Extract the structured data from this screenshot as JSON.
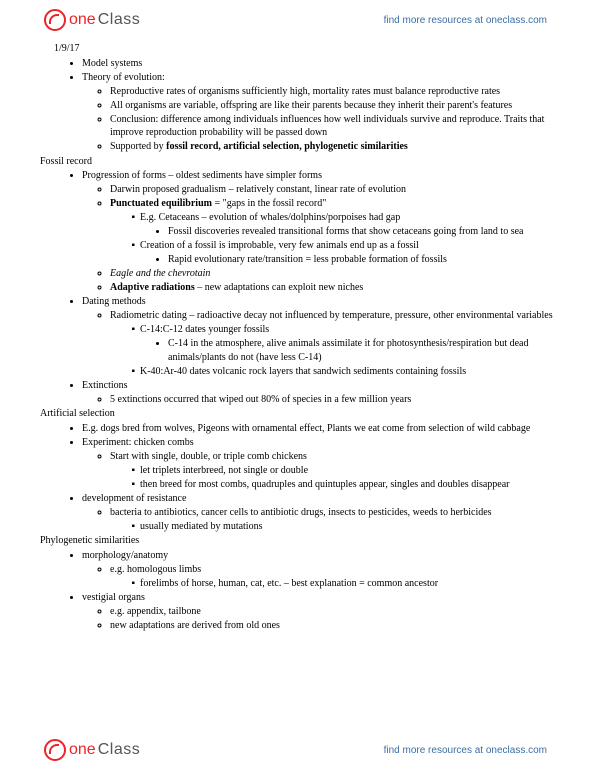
{
  "brand": {
    "one": "one",
    "class": "Class",
    "tagline": "find more resources at oneclass.com"
  },
  "date": "1/9/17",
  "s1": {
    "a": "Model systems",
    "b": "Theory of evolution:",
    "b1": "Reproductive rates of organisms sufficiently high, mortality rates must balance reproductive rates",
    "b2": "All organisms are variable, offspring are like their parents because they inherit their parent's features",
    "b3": "Conclusion: difference among individuals influences how well individuals survive and reproduce. Traits that improve reproduction probability will be passed down",
    "b4a": "Supported by ",
    "b4b": "fossil record, artificial selection, phylogenetic similarities"
  },
  "fossil": {
    "title": "Fossil record",
    "a": "Progression of forms – oldest sediments have simpler forms",
    "a1": "Darwin proposed gradualism – relatively constant, linear rate of evolution",
    "a2a": "Punctuated equilibrium",
    "a2b": " = \"gaps in the fossil record\"",
    "a2i": "E.g. Cetaceans – evolution of whales/dolphins/porpoises had gap",
    "a2i1": "Fossil discoveries revealed transitional forms that show cetaceans going from land to sea",
    "a2ii": "Creation of a fossil is improbable, very few animals end up as a fossil",
    "a2ii1": "Rapid evolutionary rate/transition = less probable formation of fossils",
    "a3": "Eagle and the chevrotain",
    "a4a": "Adaptive radiations",
    "a4b": " – new adaptations can exploit new niches",
    "b": "Dating methods",
    "b1": "Radiometric dating – radioactive decay not influenced by temperature, pressure, other environmental variables",
    "b1i": "C-14:C-12 dates younger fossils",
    "b1i1": "C-14 in the atmosphere, alive animals assimilate it for photosynthesis/respiration but dead animals/plants do not (have less C-14)",
    "b1ii": "K-40:Ar-40 dates volcanic rock layers that sandwich sediments containing fossils",
    "c": "Extinctions",
    "c1": "5 extinctions occurred that wiped out 80% of species in a few million years"
  },
  "artsel": {
    "title": "Artificial selection",
    "a": "E.g. dogs bred from wolves, Pigeons with ornamental effect, Plants we eat come from selection of wild cabbage",
    "b": "Experiment: chicken combs",
    "b1": "Start with single, double, or triple comb chickens",
    "b1i": "let triplets interbreed, not single or double",
    "b1ii": "then breed for most combs, quadruples and quintuples appear, singles and doubles disappear",
    "c": "development of resistance",
    "c1": "bacteria to antibiotics, cancer cells to antibiotic drugs, insects to pesticides, weeds to herbicides",
    "c1i": "usually mediated by mutations"
  },
  "phylo": {
    "title": "Phylogenetic similarities",
    "a": "morphology/anatomy",
    "a1": "e.g. homologous limbs",
    "a1i": "forelimbs of horse, human, cat, etc. – best explanation = common ancestor",
    "b": "vestigial organs",
    "b1": "e.g. appendix, tailbone",
    "b2": "new adaptations are derived from old ones"
  }
}
